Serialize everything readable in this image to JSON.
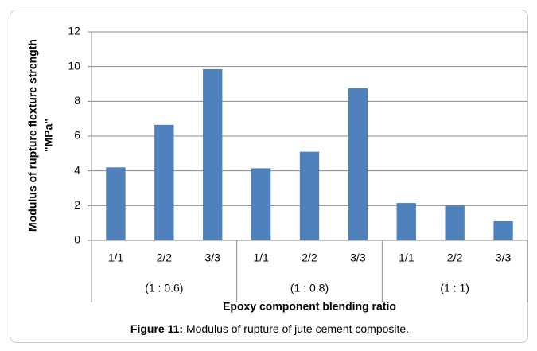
{
  "chart_data": {
    "type": "bar",
    "y_label": [
      "Modulus of rupture    flexture strength",
      "\"MPa\""
    ],
    "x_label": "Epoxy component blending ratio",
    "groups": [
      {
        "label": "(1 : 0.6)",
        "categories": [
          "1/1",
          "2/2",
          "3/3"
        ]
      },
      {
        "label": "(1 : 0.8)",
        "categories": [
          "1/1",
          "2/2",
          "3/3"
        ]
      },
      {
        "label": "(1 : 1)",
        "categories": [
          "1/1",
          "2/2",
          "3/3"
        ]
      }
    ],
    "values": [
      4.2,
      6.65,
      9.85,
      4.15,
      5.1,
      8.75,
      2.15,
      2.0,
      1.1
    ],
    "color": "#4f81bd",
    "ylim": [
      0,
      12
    ],
    "yticks": [
      0,
      2,
      4,
      6,
      8,
      10,
      12
    ],
    "grid": true
  },
  "caption": {
    "label": "Figure 11:",
    "text": "Modulus of rupture of jute cement composite."
  }
}
